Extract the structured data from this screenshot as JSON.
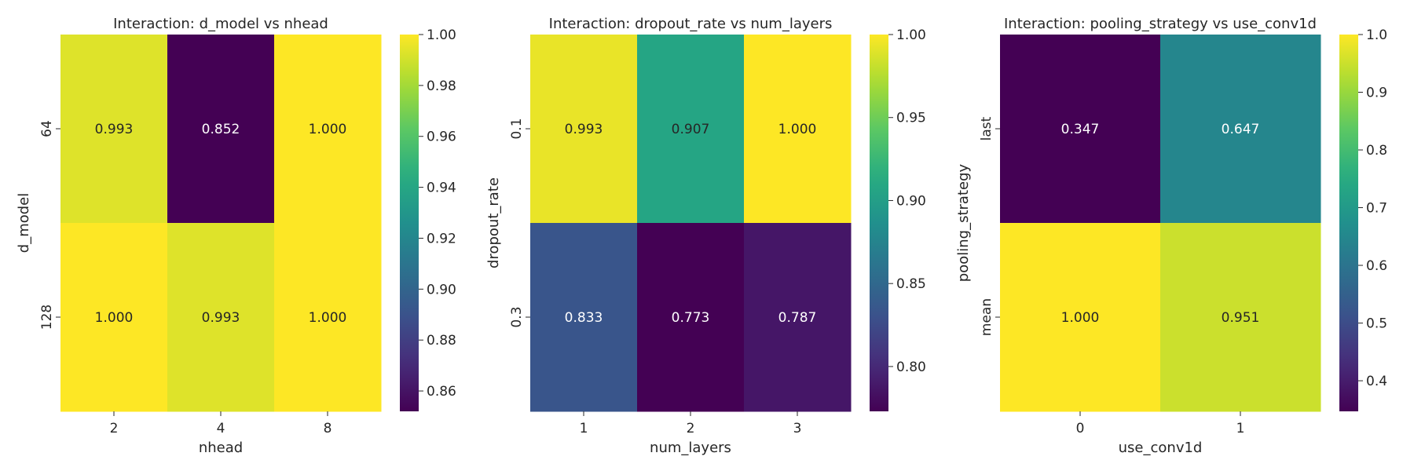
{
  "chart_data": [
    {
      "type": "heatmap",
      "title": "Interaction: d_model vs nhead",
      "xlabel": "nhead",
      "ylabel": "d_model",
      "x_categories": [
        "2",
        "4",
        "8"
      ],
      "y_categories": [
        "64",
        "128"
      ],
      "values": [
        [
          0.993,
          0.852,
          1.0
        ],
        [
          1.0,
          0.993,
          1.0
        ]
      ],
      "value_labels": [
        [
          "0.993",
          "0.852",
          "1.000"
        ],
        [
          "1.000",
          "0.993",
          "1.000"
        ]
      ],
      "colormap": "viridis",
      "vmin": 0.852,
      "vmax": 1.0,
      "colorbar_ticks": [
        "0.86",
        "0.88",
        "0.90",
        "0.92",
        "0.94",
        "0.96",
        "0.98",
        "1.00"
      ]
    },
    {
      "type": "heatmap",
      "title": "Interaction: dropout_rate vs num_layers",
      "xlabel": "num_layers",
      "ylabel": "dropout_rate",
      "x_categories": [
        "1",
        "2",
        "3"
      ],
      "y_categories": [
        "0.1",
        "0.3"
      ],
      "values": [
        [
          0.993,
          0.907,
          1.0
        ],
        [
          0.833,
          0.773,
          0.787
        ]
      ],
      "value_labels": [
        [
          "0.993",
          "0.907",
          "1.000"
        ],
        [
          "0.833",
          "0.773",
          "0.787"
        ]
      ],
      "colormap": "viridis",
      "vmin": 0.773,
      "vmax": 1.0,
      "colorbar_ticks": [
        "0.80",
        "0.85",
        "0.90",
        "0.95",
        "1.00"
      ]
    },
    {
      "type": "heatmap",
      "title": "Interaction: pooling_strategy vs use_conv1d",
      "xlabel": "use_conv1d",
      "ylabel": "pooling_strategy",
      "x_categories": [
        "0",
        "1"
      ],
      "y_categories": [
        "last",
        "mean"
      ],
      "values": [
        [
          0.347,
          0.647
        ],
        [
          1.0,
          0.951
        ]
      ],
      "value_labels": [
        [
          "0.347",
          "0.647"
        ],
        [
          "1.000",
          "0.951"
        ]
      ],
      "colormap": "viridis",
      "vmin": 0.347,
      "vmax": 1.0,
      "colorbar_ticks": [
        "0.4",
        "0.5",
        "0.6",
        "0.7",
        "0.8",
        "0.9",
        "1.0"
      ]
    }
  ]
}
